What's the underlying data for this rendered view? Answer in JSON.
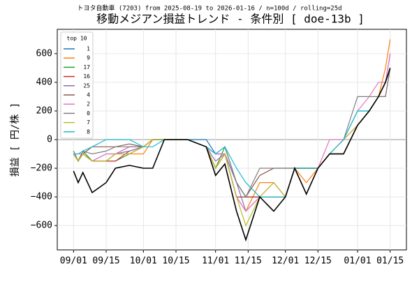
{
  "chart_data": {
    "type": "line",
    "title": "移動メジアン損益トレンド - 条件別 [ doe-13b ]",
    "subtitle": "トヨタ自動車 (7203) from 2025-08-19 to 2026-01-16 / n=100d / rolling=25d",
    "y_label": "損益 [ 円/株 ]",
    "legend_title": "top 10",
    "legend": "upper left",
    "grid": true,
    "x": [
      "09/01",
      "09/03",
      "09/05",
      "09/09",
      "09/15",
      "09/19",
      "09/25",
      "10/01",
      "10/05",
      "10/10",
      "10/20",
      "10/28",
      "11/01",
      "11/05",
      "11/10",
      "11/14",
      "11/20",
      "11/26",
      "12/01",
      "12/05",
      "12/10",
      "12/15",
      "12/20",
      "12/26",
      "01/01",
      "01/06",
      "01/10",
      "01/13",
      "01/15"
    ],
    "xlim": [
      "08/25",
      "01/22"
    ],
    "xticks": [
      "09/01",
      "09/15",
      "10/01",
      "10/15",
      "11/01",
      "11/15",
      "12/01",
      "12/15",
      "01/01",
      "01/15"
    ],
    "ylim": [
      -770,
      770
    ],
    "yticks": [
      {
        "value": -600,
        "label": "−600"
      },
      {
        "value": -400,
        "label": "−400"
      },
      {
        "value": -200,
        "label": "−200"
      },
      0,
      200,
      400,
      600
    ],
    "series": [
      {
        "name": "1",
        "color": "#1f77b4",
        "values": [
          -80,
          -150,
          -80,
          -150,
          -150,
          -100,
          -50,
          -50,
          0,
          0,
          0,
          0,
          -100,
          -100,
          -300,
          -400,
          -400,
          -400,
          -400,
          -200,
          -200,
          -200,
          -100,
          0,
          200,
          200,
          300,
          400,
          500
        ]
      },
      {
        "name": "9",
        "color": "#ff7f0e",
        "values": [
          -100,
          -150,
          -80,
          -150,
          -150,
          -100,
          -100,
          -100,
          0,
          0,
          0,
          -50,
          -200,
          -100,
          -400,
          -500,
          -300,
          -300,
          -400,
          -200,
          -300,
          -200,
          -100,
          -100,
          100,
          200,
          300,
          500,
          700
        ]
      },
      {
        "name": "17",
        "color": "#2ca02c",
        "values": [
          -100,
          -150,
          -80,
          -150,
          -150,
          -150,
          -100,
          -50,
          0,
          0,
          0,
          -50,
          -200,
          -50,
          -300,
          -400,
          -400,
          -400,
          -400,
          -200,
          -200,
          -200,
          -100,
          -100,
          100,
          200,
          300,
          400,
          500
        ]
      },
      {
        "name": "16",
        "color": "#d62728",
        "values": [
          -100,
          -150,
          -100,
          -150,
          -150,
          -150,
          -80,
          -50,
          0,
          0,
          0,
          -50,
          -200,
          -100,
          -400,
          -400,
          -400,
          -400,
          -400,
          -200,
          -200,
          -200,
          -100,
          0,
          100,
          200,
          300,
          300,
          500
        ]
      },
      {
        "name": "25",
        "color": "#9467bd",
        "values": [
          -100,
          -150,
          -100,
          -150,
          -100,
          -100,
          -80,
          -50,
          0,
          0,
          0,
          -50,
          -150,
          -100,
          -300,
          -500,
          -400,
          -400,
          -400,
          -200,
          -200,
          -200,
          -100,
          -100,
          100,
          200,
          300,
          400,
          600
        ]
      },
      {
        "name": "4",
        "color": "#8c564b",
        "values": [
          -100,
          -150,
          -100,
          -50,
          -50,
          -50,
          -30,
          -50,
          0,
          0,
          0,
          -50,
          -100,
          -100,
          -400,
          -400,
          -250,
          -200,
          -200,
          -200,
          -200,
          -200,
          -100,
          -100,
          100,
          200,
          300,
          400,
          500
        ]
      },
      {
        "name": "2",
        "color": "#e377c2",
        "values": [
          -100,
          -100,
          -100,
          -150,
          -100,
          -100,
          -50,
          -50,
          0,
          0,
          0,
          -50,
          -100,
          -100,
          -400,
          -500,
          -400,
          -300,
          -400,
          -200,
          -200,
          -200,
          0,
          0,
          200,
          300,
          400,
          400,
          600
        ]
      },
      {
        "name": "0",
        "color": "#7f7f7f",
        "values": [
          -80,
          -150,
          -80,
          -100,
          -80,
          -50,
          -50,
          -50,
          0,
          0,
          0,
          -50,
          -100,
          -50,
          -300,
          -400,
          -200,
          -200,
          -200,
          -200,
          -200,
          -200,
          -100,
          0,
          300,
          300,
          300,
          300,
          500
        ]
      },
      {
        "name": "7",
        "color": "#bcbd22",
        "values": [
          -100,
          -150,
          -100,
          -150,
          -150,
          -100,
          -100,
          -50,
          0,
          0,
          0,
          -50,
          -200,
          -100,
          -400,
          -600,
          -400,
          -300,
          -400,
          -200,
          -200,
          -200,
          -100,
          0,
          100,
          200,
          300,
          400,
          500
        ]
      },
      {
        "name": "8",
        "color": "#17becf",
        "values": [
          -100,
          -100,
          -80,
          -50,
          0,
          0,
          0,
          -50,
          -50,
          0,
          0,
          -50,
          -100,
          -50,
          -200,
          -300,
          -400,
          -400,
          -400,
          -200,
          -200,
          -200,
          -100,
          0,
          200,
          200,
          300,
          400,
          500
        ]
      },
      {
        "color": "#000000",
        "values": [
          -220,
          -300,
          -230,
          -370,
          -300,
          -200,
          -180,
          -200,
          -200,
          0,
          0,
          -50,
          -250,
          -170,
          -500,
          -700,
          -400,
          -500,
          -400,
          -200,
          -380,
          -200,
          -100,
          -100,
          100,
          200,
          300,
          400,
          500
        ]
      }
    ]
  }
}
